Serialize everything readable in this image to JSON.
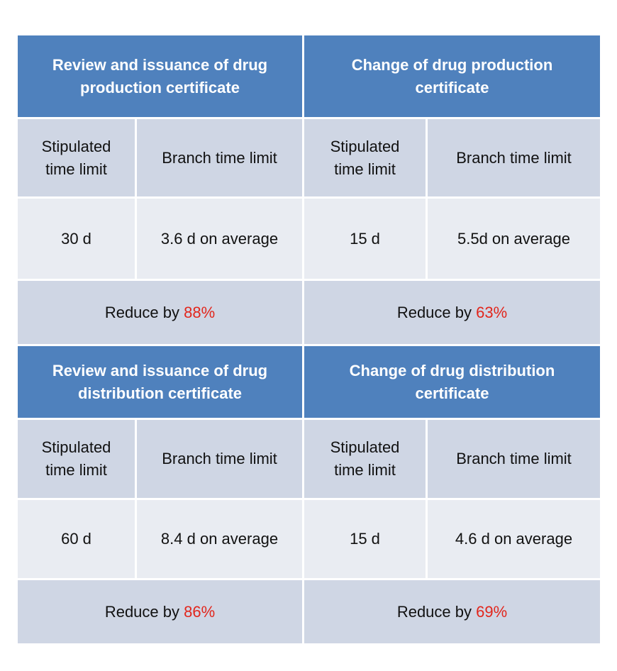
{
  "blocks": [
    {
      "title": "Review and issuance of drug production certificate",
      "stipulated_label": "Stipulated time limit",
      "branch_label": "Branch time limit",
      "stipulated_value": "30 d",
      "branch_value": "3.6 d on average",
      "reduce_prefix": "Reduce by ",
      "reduce_pct": "88%"
    },
    {
      "title": "Change of drug production certificate",
      "stipulated_label": "Stipulated time limit",
      "branch_label": "Branch time limit",
      "stipulated_value": "15 d",
      "branch_value": "5.5d on average",
      "reduce_prefix": "Reduce by ",
      "reduce_pct": "63%"
    },
    {
      "title": "Review and issuance of drug distribution certificate",
      "stipulated_label": "Stipulated time limit",
      "branch_label": "Branch time limit",
      "stipulated_value": "60 d",
      "branch_value": "8.4 d on average",
      "reduce_prefix": "Reduce by ",
      "reduce_pct": "86%"
    },
    {
      "title": "Change of drug distribution certificate",
      "stipulated_label": "Stipulated time limit",
      "branch_label": "Branch time limit",
      "stipulated_value": "15 d",
      "branch_value": "4.6 d on average",
      "reduce_prefix": "Reduce by ",
      "reduce_pct": "69%"
    }
  ],
  "colors": {
    "header_bg": "#4f81bd",
    "label_bg": "#cfd6e4",
    "value_bg": "#e9ecf2",
    "percent_text": "#e2261c"
  }
}
